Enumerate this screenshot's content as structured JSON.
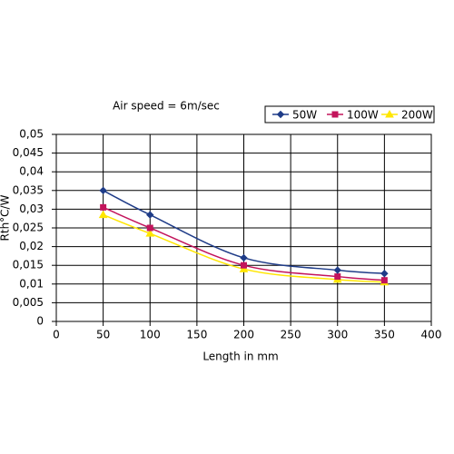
{
  "chart_data": {
    "type": "line",
    "title": "Air speed = 6m/sec",
    "x_label": "Length in mm",
    "y_label": "Rth°C/W",
    "x": [
      50,
      100,
      200,
      300,
      350
    ],
    "series": [
      {
        "name": "50W",
        "color": "#1f3c88",
        "marker": "diamond",
        "values": [
          0.035,
          0.0285,
          0.017,
          0.0137,
          0.0128
        ]
      },
      {
        "name": "100W",
        "color": "#c3155c",
        "marker": "square",
        "values": [
          0.0305,
          0.025,
          0.015,
          0.012,
          0.011
        ]
      },
      {
        "name": "200W",
        "color": "#ffe600",
        "marker": "triangle",
        "values": [
          0.0285,
          0.0235,
          0.014,
          0.0112,
          0.0105
        ]
      }
    ],
    "xlim": [
      0,
      400
    ],
    "xticks": [
      0,
      50,
      100,
      150,
      200,
      250,
      300,
      350,
      400
    ],
    "ylim": [
      0,
      0.05
    ],
    "yticks": [
      0,
      {
        "value": 0.005,
        "label": "0,005"
      },
      {
        "value": 0.01,
        "label": "0,01"
      },
      {
        "value": 0.015,
        "label": "0,015"
      },
      {
        "value": 0.02,
        "label": "0,02"
      },
      {
        "value": 0.025,
        "label": "0,025"
      },
      {
        "value": 0.03,
        "label": "0,03"
      },
      {
        "value": 0.035,
        "label": "0,035"
      },
      {
        "value": 0.04,
        "label": "0,04"
      },
      {
        "value": 0.045,
        "label": "0,045"
      },
      {
        "value": 0.05,
        "label": "0,05"
      }
    ],
    "grid": true,
    "legend": "top-right"
  }
}
